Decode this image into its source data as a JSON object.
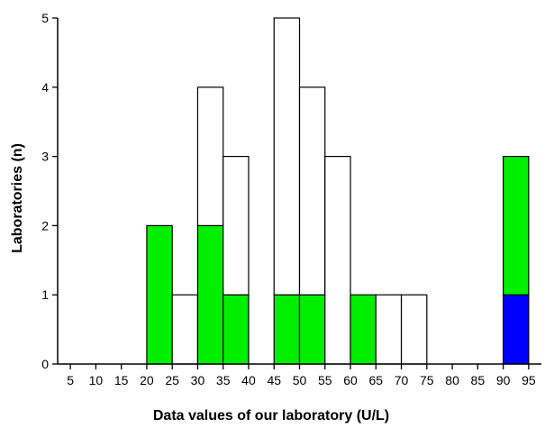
{
  "chart_data": {
    "type": "bar",
    "xlabel": "Data values of our laboratory (U/L)",
    "ylabel": "Laboratories (n)",
    "xlim": [
      2.5,
      97.5
    ],
    "ylim": [
      0,
      5
    ],
    "bin_width": 5,
    "x_ticks": [
      5,
      10,
      15,
      20,
      25,
      30,
      35,
      40,
      45,
      50,
      55,
      60,
      65,
      70,
      75,
      80,
      85,
      90,
      95
    ],
    "y_ticks": [
      0,
      1,
      2,
      3,
      4,
      5
    ],
    "grid": false,
    "legend": "none",
    "stack_order": [
      "blue",
      "green",
      "white"
    ],
    "colors": {
      "blue": "#0000ff",
      "green": "#00ee00",
      "white": "#ffffff",
      "edge": "#000000"
    },
    "series": [
      {
        "values": [
          0,
          0,
          0,
          0,
          0,
          0,
          0,
          0,
          0,
          0,
          0,
          0,
          0,
          0,
          0,
          0,
          0,
          0,
          1
        ]
      },
      {
        "values": [
          0,
          0,
          0,
          0,
          2,
          0,
          2,
          1,
          0,
          1,
          1,
          0,
          1,
          0,
          0,
          0,
          0,
          0,
          2
        ]
      },
      {
        "values": [
          0,
          0,
          0,
          0,
          0,
          1,
          2,
          2,
          0,
          4,
          3,
          3,
          0,
          1,
          1,
          0,
          0,
          0,
          0
        ]
      }
    ]
  }
}
